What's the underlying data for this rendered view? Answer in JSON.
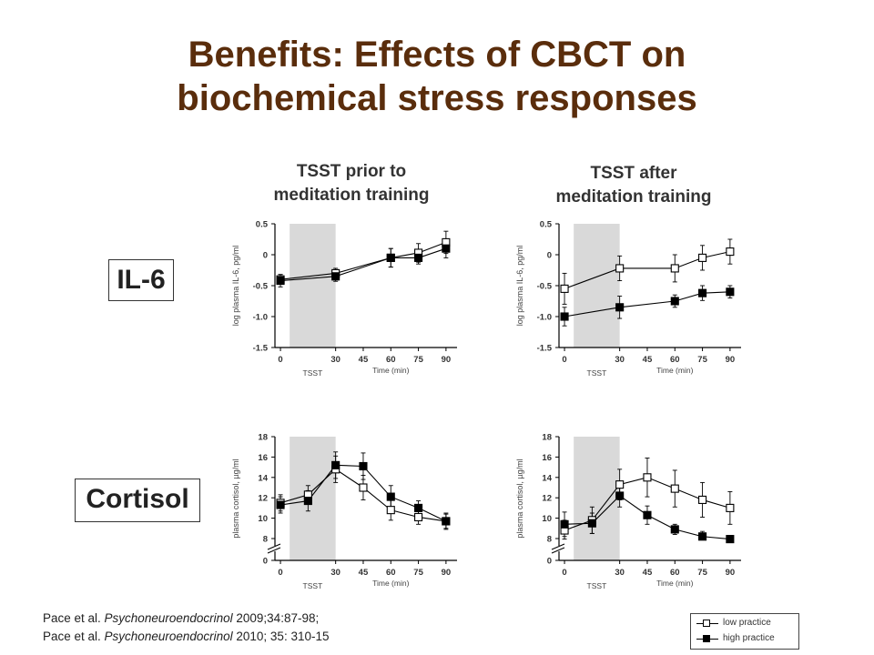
{
  "slide": {
    "title_line1": "Benefits: Effects of CBCT on",
    "title_line2": "biochemical stress responses",
    "col_left_line1": "TSST prior to",
    "col_left_line2": "meditation training",
    "col_right_line1": "TSST after",
    "col_right_line2": "meditation training",
    "row_il6": "IL-6",
    "row_cortisol": "Cortisol",
    "citation1_authors": "Pace et al. ",
    "citation1_journal": "Psychoneuroendocrinol",
    "citation1_rest": " 2009;34:87-98;",
    "citation2_authors": "Pace et al. ",
    "citation2_journal": "Psychoneuroendocrinol",
    "citation2_rest": " 2010; 35: 310-15"
  },
  "legend": {
    "low": "low practice",
    "high": "high practice"
  },
  "colors": {
    "title": "#5a2d0c",
    "tsst_band": "#d9d9d9"
  },
  "chart_data": [
    {
      "type": "line",
      "id": "il6-pre",
      "xlabel": "Time (min)",
      "ylabel": "log plasma IL-6, pg/ml",
      "band_label": "TSST",
      "band": [
        5,
        30
      ],
      "x": [
        0,
        30,
        45,
        60,
        75,
        90
      ],
      "xticks": [
        0,
        30,
        45,
        60,
        75,
        90
      ],
      "yticks": [
        -1.5,
        -1.0,
        -0.5,
        0,
        0.5
      ],
      "ytick_labels": [
        "-1.5",
        "-1.0",
        "-0.5",
        "0",
        "0.5"
      ],
      "ylim": [
        -1.5,
        0.5
      ],
      "axis_break": false,
      "series": [
        {
          "name": "low practice",
          "marker": "open",
          "x": [
            0,
            30,
            60,
            75,
            90
          ],
          "values": [
            -0.4,
            -0.3,
            -0.05,
            0.03,
            0.2
          ],
          "err": [
            0.08,
            0.08,
            0.15,
            0.15,
            0.18
          ]
        },
        {
          "name": "high practice",
          "marker": "filled",
          "x": [
            0,
            30,
            60,
            75,
            90
          ],
          "values": [
            -0.42,
            -0.35,
            -0.05,
            -0.05,
            0.1
          ],
          "err": [
            0.1,
            0.08,
            0.15,
            0.1,
            0.15
          ]
        }
      ]
    },
    {
      "type": "line",
      "id": "il6-post",
      "xlabel": "Time (min)",
      "ylabel": "log plasma IL-6, pg/ml",
      "band_label": "TSST",
      "band": [
        5,
        30
      ],
      "x": [
        0,
        30,
        45,
        60,
        75,
        90
      ],
      "xticks": [
        0,
        30,
        45,
        60,
        75,
        90
      ],
      "yticks": [
        -1.5,
        -1.0,
        -0.5,
        0,
        0.5
      ],
      "ytick_labels": [
        "-1.5",
        "-1.0",
        "-0.5",
        "0",
        "0.5"
      ],
      "ylim": [
        -1.5,
        0.5
      ],
      "axis_break": false,
      "series": [
        {
          "name": "low practice",
          "marker": "open",
          "x": [
            0,
            30,
            60,
            75,
            90
          ],
          "values": [
            -0.55,
            -0.22,
            -0.22,
            -0.05,
            0.05
          ],
          "err": [
            0.25,
            0.2,
            0.22,
            0.2,
            0.2
          ]
        },
        {
          "name": "high practice",
          "marker": "filled",
          "x": [
            0,
            30,
            60,
            75,
            90
          ],
          "values": [
            -1.0,
            -0.85,
            -0.75,
            -0.62,
            -0.6
          ],
          "err": [
            0.15,
            0.18,
            0.1,
            0.12,
            0.1
          ]
        }
      ]
    },
    {
      "type": "line",
      "id": "cortisol-pre",
      "xlabel": "Time (min)",
      "ylabel": "plasma cortisol, µg/ml",
      "band_label": "TSST",
      "band": [
        5,
        30
      ],
      "x": [
        0,
        30,
        45,
        60,
        75,
        90
      ],
      "xticks": [
        0,
        30,
        45,
        60,
        75,
        90
      ],
      "yticks": [
        0,
        8,
        10,
        12,
        14,
        16,
        18
      ],
      "ytick_labels": [
        "0",
        "8",
        "10",
        "12",
        "14",
        "16",
        "18"
      ],
      "ylim": [
        0,
        18
      ],
      "axis_break": true,
      "series": [
        {
          "name": "low practice",
          "marker": "open",
          "x": [
            0,
            15,
            30,
            45,
            60,
            75,
            90
          ],
          "values": [
            11.5,
            12.3,
            14.8,
            13.0,
            10.8,
            10.1,
            9.7
          ],
          "err": [
            0.8,
            0.9,
            1.3,
            1.2,
            1.0,
            0.7,
            0.7
          ]
        },
        {
          "name": "high practice",
          "marker": "filled",
          "x": [
            0,
            15,
            30,
            45,
            60,
            75,
            90
          ],
          "values": [
            11.3,
            11.7,
            15.2,
            15.1,
            12.1,
            11.0,
            9.7
          ],
          "err": [
            0.8,
            1.0,
            1.3,
            1.3,
            1.1,
            0.7,
            0.8
          ]
        }
      ]
    },
    {
      "type": "line",
      "id": "cortisol-post",
      "xlabel": "Time (min)",
      "ylabel": "plasma cortisol, µg/ml",
      "band_label": "TSST",
      "band": [
        5,
        30
      ],
      "x": [
        0,
        30,
        45,
        60,
        75,
        90
      ],
      "xticks": [
        0,
        30,
        45,
        60,
        75,
        90
      ],
      "yticks": [
        0,
        8,
        10,
        12,
        14,
        16,
        18
      ],
      "ytick_labels": [
        "0",
        "8",
        "10",
        "12",
        "14",
        "16",
        "18"
      ],
      "ylim": [
        0,
        18
      ],
      "axis_break": true,
      "series": [
        {
          "name": "low practice",
          "marker": "open",
          "x": [
            0,
            15,
            30,
            45,
            60,
            75,
            90
          ],
          "values": [
            8.8,
            9.8,
            13.3,
            14.0,
            12.9,
            11.8,
            11.0
          ],
          "err": [
            1.0,
            1.3,
            1.5,
            1.9,
            1.8,
            1.7,
            1.6
          ]
        },
        {
          "name": "high practice",
          "marker": "filled",
          "x": [
            0,
            15,
            30,
            45,
            60,
            75,
            90
          ],
          "values": [
            9.4,
            9.5,
            12.2,
            10.3,
            8.9,
            8.2,
            7.8
          ],
          "err": [
            1.2,
            1.0,
            1.1,
            0.9,
            0.5,
            0.5,
            0.5
          ]
        }
      ]
    }
  ]
}
